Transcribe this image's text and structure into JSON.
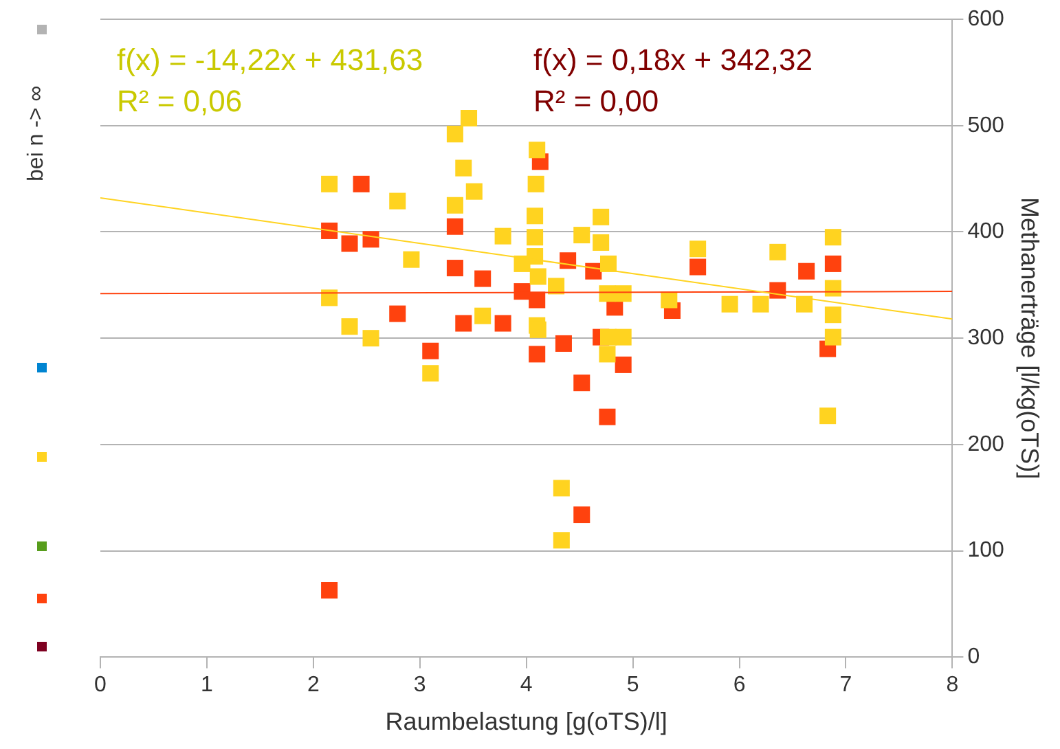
{
  "chart_data": {
    "type": "scatter",
    "xlabel": "Raumbelastung [g(oTS)/l]",
    "ylabel": "Methanerträge [l/kg(oTS)]",
    "xlim": [
      0,
      8
    ],
    "xticks": [
      0,
      1,
      2,
      3,
      4,
      5,
      6,
      7,
      8
    ],
    "ylim": [
      0,
      600
    ],
    "yticks": [
      0,
      100,
      200,
      300,
      400,
      500,
      600
    ],
    "grid": "y",
    "legend": false,
    "annotations": [
      "f(x) = -14,22x + 431,63",
      "R² = 0,06",
      "f(x) = 0,18x + 342,32",
      "R² = 0,00",
      "bei n -> ∞"
    ],
    "series": [
      {
        "color": "#ffd320",
        "marker": "square",
        "x": [
          2.15,
          2.15,
          2.34,
          2.54,
          2.79,
          2.92,
          3.1,
          3.33,
          3.46,
          3.41,
          3.51,
          3.33,
          3.59,
          3.78,
          3.96,
          4.1,
          4.09,
          4.08,
          4.08,
          4.08,
          4.11,
          4.1,
          4.11,
          4.52,
          4.28,
          5.61,
          5.34,
          4.7,
          4.7,
          4.77,
          4.76,
          4.77,
          4.76,
          4.91,
          4.91,
          4.33,
          4.33,
          5.91,
          6.2,
          6.36,
          6.61,
          6.88,
          6.88,
          6.88,
          6.88,
          6.83
        ],
        "values": [
          445,
          338,
          311,
          300,
          429,
          374,
          267,
          492,
          507,
          460,
          438,
          425,
          321,
          396,
          370,
          477,
          445,
          415,
          395,
          377,
          358,
          312,
          308,
          397,
          349,
          384,
          336,
          414,
          390,
          370,
          342,
          301,
          285,
          301,
          342,
          159,
          110,
          332,
          332,
          381,
          332,
          395,
          347,
          322,
          301,
          227
        ]
      },
      {
        "color": "#ff420e",
        "marker": "square",
        "x": [
          2.15,
          2.15,
          2.34,
          2.54,
          2.45,
          2.79,
          3.1,
          3.33,
          3.33,
          3.41,
          3.59,
          3.78,
          3.96,
          4.13,
          4.1,
          4.1,
          4.35,
          4.39,
          4.52,
          4.52,
          4.76,
          4.7,
          4.91,
          4.63,
          5.37,
          5.61,
          6.36,
          6.63,
          6.88,
          6.83,
          4.83
        ],
        "values": [
          63,
          401,
          389,
          393,
          445,
          323,
          288,
          405,
          366,
          314,
          356,
          314,
          344,
          466,
          336,
          285,
          295,
          373,
          258,
          134,
          226,
          301,
          275,
          363,
          326,
          367,
          345,
          363,
          370,
          290,
          329
        ]
      },
      {
        "type": "line",
        "color": "#ffd320",
        "x": [
          0,
          8
        ],
        "values": [
          432,
          318
        ]
      },
      {
        "type": "line",
        "color": "#ff420e",
        "x": [
          0,
          8
        ],
        "values": [
          342,
          344
        ]
      }
    ]
  }
}
